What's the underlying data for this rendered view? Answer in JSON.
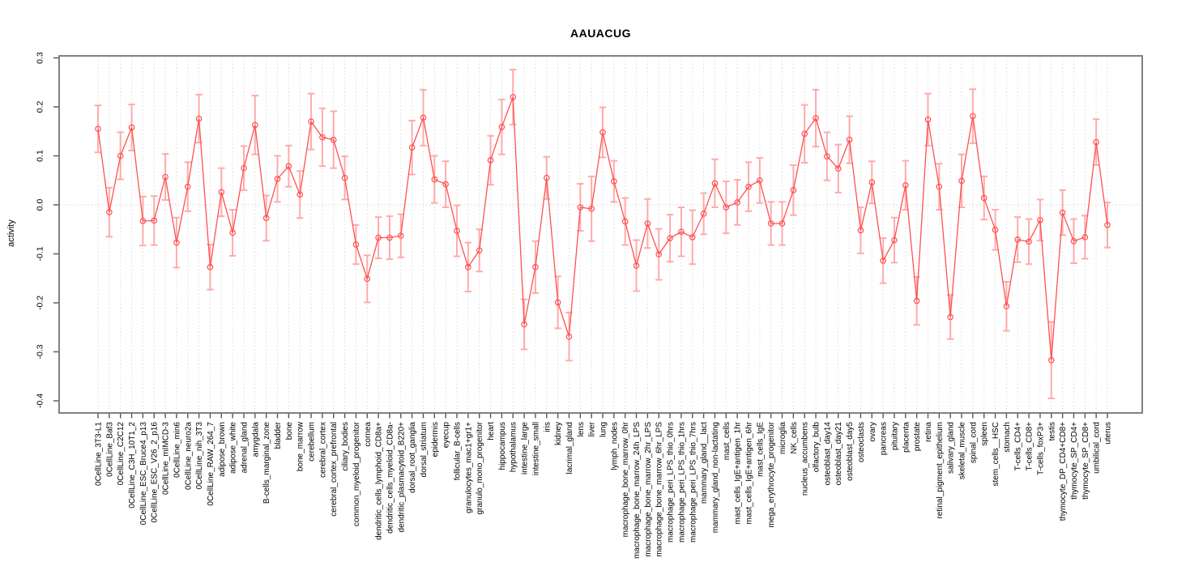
{
  "chart_data": {
    "type": "line",
    "title": "AAUACUG",
    "ylabel": "activity",
    "xlabel": "",
    "ylim": [
      -0.4,
      0.3
    ],
    "ytick_labels": [
      "0.3",
      "0.2",
      "0.1",
      "0.0",
      "-0.1",
      "-0.2",
      "-0.3",
      "-0.4"
    ],
    "ytick_values": [
      0.3,
      0.2,
      0.1,
      0.0,
      -0.1,
      -0.2,
      -0.3,
      -0.4
    ],
    "grid": "vertical dotted gridline at every category; dotted horizontal line at y=0",
    "legend_position": "none",
    "marker": "open-circle",
    "error_bars": true,
    "colors": {
      "series": "#ff5050",
      "error_bar": "#ffaaaa",
      "grid": "#dcdcdc",
      "zero_line": "#d4d4d4",
      "frame": "#737373",
      "text": "#000000",
      "background": "#ffffff"
    },
    "categories": [
      "0CellLine_3T3-L1",
      "0CellLine_Baf3",
      "0CellLine_C2C12",
      "0CellLine_C3H_10T1_2",
      "0CellLine_ESC_Bruce4_p13",
      "0CellLine_ESC_V26_2_p16",
      "0CellLine_mIMCD-3",
      "0CellLine_min6",
      "0CellLine_neuro2a",
      "0CellLine_nih_3T3",
      "0CellLine_RAW_264_7",
      "adipose_brown",
      "adipose_white",
      "adrenal_gland",
      "amygdala",
      "B-cells_marginal_zone",
      "bladder",
      "bone",
      "bone_marrow",
      "cerebellum",
      "cerebral_cortex",
      "cerebral_cortex_prefrontal",
      "ciliary_bodies",
      "common_myeloid_progenitor",
      "cornea",
      "dendritic_cells_lymphoid_CD8a+",
      "dendritic_cells_myeloid_CD8a-",
      "dendritic_plasmacytoid_B220+",
      "dorsal_root_ganglia",
      "dorsal_striatum",
      "epidermis",
      "eyecup",
      "follicular_B-cells",
      "granulocytes_mac1+gr1+",
      "granulo_mono_progenitor",
      "heart",
      "hippocampus",
      "hypothalamus",
      "intestine_large",
      "intestine_small",
      "iris",
      "kidney",
      "lacrimal_gland",
      "lens",
      "liver",
      "lung",
      "lymph_nodes",
      "macrophage_bone_marrow_0hr",
      "macrophage_bone_marrow_24h_LPS",
      "macrophage_bone_marrow_2hr_LPS",
      "macrophage_bone_marrow_6hr_LPS",
      "macrophage_peri_LPS_thio_0hrs",
      "macrophage_peri_LPS_thio_1hrs",
      "macrophage_peri_LPS_thio_7hrs",
      "mammary_gland__lact",
      "mammary_gland_non-lactating",
      "mast_cells",
      "mast_cells_IgE+antigen_1hr",
      "mast_cells_IgE+antigen_6hr",
      "mast_cells_IgE",
      "mega_erythrocyte_progenitor",
      "microglia",
      "NK_cells",
      "nucleus_accumbens",
      "olfactory_bulb",
      "osteoblast_day14",
      "osteoblast_day21",
      "osteoblast_day5",
      "osteoclasts",
      "ovary",
      "pancreas",
      "pituitary",
      "placenta",
      "prostate",
      "retina",
      "retinal_pigment_epithelium",
      "salivary_gland",
      "skeletal_muscle",
      "spinal_cord",
      "spleen",
      "stem_cells__HSC",
      "stomach",
      "T-cells_CD4+",
      "T-cells_CD8+",
      "T-cells_foxP3+",
      "testis",
      "thymocyte_DP_CD4+CD8+",
      "thymocyte_SP_CD4+",
      "thymocyte_SP_CD8+",
      "umbilical_cord",
      "uterus"
    ],
    "values": [
      0.155,
      -0.015,
      0.1,
      0.158,
      -0.033,
      -0.032,
      0.057,
      -0.077,
      0.037,
      0.176,
      -0.127,
      0.026,
      -0.057,
      0.075,
      0.163,
      -0.027,
      0.053,
      0.079,
      0.021,
      0.17,
      0.138,
      0.133,
      0.055,
      -0.081,
      -0.151,
      -0.067,
      -0.067,
      -0.063,
      0.117,
      0.178,
      0.052,
      0.042,
      -0.053,
      -0.127,
      -0.093,
      0.091,
      0.159,
      0.22,
      -0.244,
      -0.127,
      0.055,
      -0.199,
      -0.269,
      -0.005,
      -0.008,
      0.148,
      0.048,
      -0.034,
      -0.124,
      -0.038,
      -0.101,
      -0.068,
      -0.055,
      -0.066,
      -0.018,
      0.044,
      -0.005,
      0.005,
      0.037,
      0.05,
      -0.038,
      -0.038,
      0.03,
      0.145,
      0.177,
      0.099,
      0.074,
      0.133,
      -0.052,
      0.046,
      -0.114,
      -0.072,
      0.04,
      -0.196,
      0.174,
      0.037,
      -0.229,
      0.049,
      0.181,
      0.014,
      -0.051,
      -0.207,
      -0.071,
      -0.075,
      -0.031,
      -0.317,
      -0.016,
      -0.074,
      -0.066,
      0.128,
      -0.041
    ],
    "errors": [
      0.048,
      0.05,
      0.048,
      0.047,
      0.05,
      0.05,
      0.047,
      0.051,
      0.05,
      0.049,
      0.046,
      0.049,
      0.047,
      0.045,
      0.06,
      0.046,
      0.047,
      0.042,
      0.048,
      0.057,
      0.059,
      0.058,
      0.044,
      0.04,
      0.048,
      0.042,
      0.044,
      0.044,
      0.055,
      0.057,
      0.048,
      0.047,
      0.052,
      0.05,
      0.043,
      0.05,
      0.056,
      0.056,
      0.051,
      0.053,
      0.043,
      0.053,
      0.049,
      0.048,
      0.066,
      0.051,
      0.042,
      0.048,
      0.052,
      0.05,
      0.052,
      0.048,
      0.05,
      0.055,
      0.042,
      0.049,
      0.053,
      0.046,
      0.05,
      0.046,
      0.044,
      0.044,
      0.051,
      0.059,
      0.058,
      0.049,
      0.049,
      0.048,
      0.047,
      0.043,
      0.046,
      0.046,
      0.05,
      0.049,
      0.053,
      0.047,
      0.045,
      0.054,
      0.055,
      0.044,
      0.041,
      0.05,
      0.046,
      0.046,
      0.042,
      0.078,
      0.046,
      0.045,
      0.044,
      0.047,
      0.046
    ]
  }
}
